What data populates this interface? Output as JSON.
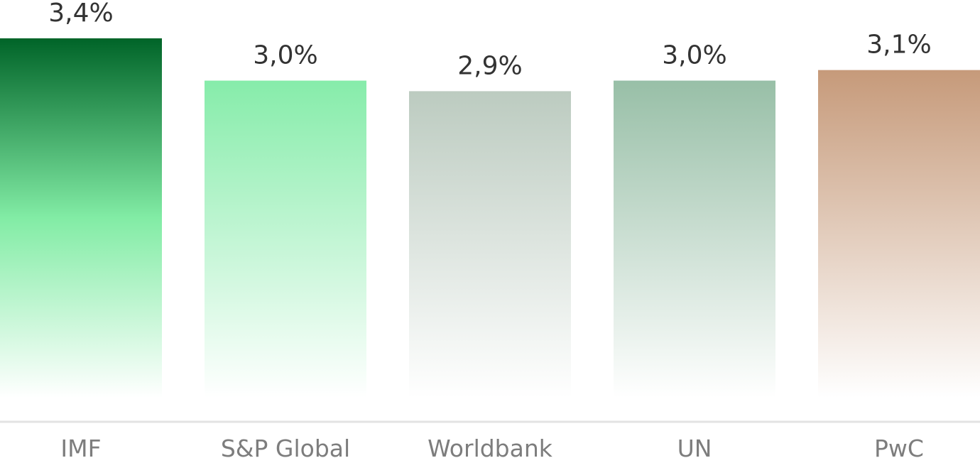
{
  "chart_data": {
    "type": "bar",
    "categories": [
      "IMF",
      "S&P Global",
      "Worldbank",
      "UN",
      "PwC"
    ],
    "values": [
      3.4,
      3.0,
      2.9,
      3.0,
      3.1
    ],
    "value_labels": [
      "3,4%",
      "3,0%",
      "2,9%",
      "3,0%",
      "3,1%"
    ],
    "colors": [
      "#006428",
      "#86ecaa",
      "#bccbc0",
      "#98bfa7",
      "#c69a7a"
    ],
    "mid_colors": [
      "#82eca5",
      null,
      null,
      null,
      null
    ],
    "title": "",
    "xlabel": "",
    "ylabel": "",
    "ylim": [
      0,
      3.4
    ],
    "grid": false,
    "legend": "none"
  }
}
